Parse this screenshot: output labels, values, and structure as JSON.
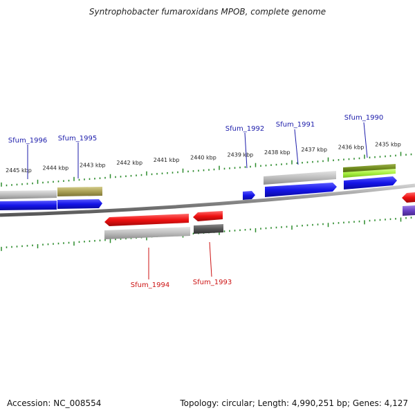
{
  "title": "Syntrophobacter fumaroxidans MPOB, complete genome",
  "accession_label": "Accession: NC_008554",
  "summary_label": "Topology: circular; Length: 4,990,251 bp; Genes: 4,127",
  "colors": {
    "forward_label": "#1a1aaa",
    "reverse_label": "#cc1111",
    "tick": "#2a8a2a",
    "backbone": "#888888",
    "cds_forward": "#1515e6",
    "cds_reverse": "#ee1111",
    "feature_grey": "#b8b8b8",
    "feature_dark": "#5a5a5a",
    "feature_olive": "#aaa055",
    "feature_olive_dark": "#6f8a1e",
    "feature_lime": "#a8f040",
    "feature_purple": "#6a3fc4"
  },
  "scale": {
    "ticks": [
      {
        "label": "2445 kbp"
      },
      {
        "label": "2444 kbp"
      },
      {
        "label": "2443 kbp"
      },
      {
        "label": "2442 kbp"
      },
      {
        "label": "2441 kbp"
      },
      {
        "label": "2440 kbp"
      },
      {
        "label": "2439 kbp"
      },
      {
        "label": "2438 kbp"
      },
      {
        "label": "2437 kbp"
      },
      {
        "label": "2436 kbp"
      },
      {
        "label": "2435 kbp"
      }
    ]
  },
  "genes": [
    {
      "name": "Sfum_1996",
      "strand": "forward"
    },
    {
      "name": "Sfum_1995",
      "strand": "forward"
    },
    {
      "name": "Sfum_1992",
      "strand": "forward"
    },
    {
      "name": "Sfum_1991",
      "strand": "forward"
    },
    {
      "name": "Sfum_1990",
      "strand": "forward"
    },
    {
      "name": "Sfum_1994",
      "strand": "reverse"
    },
    {
      "name": "Sfum_1993",
      "strand": "reverse"
    }
  ]
}
